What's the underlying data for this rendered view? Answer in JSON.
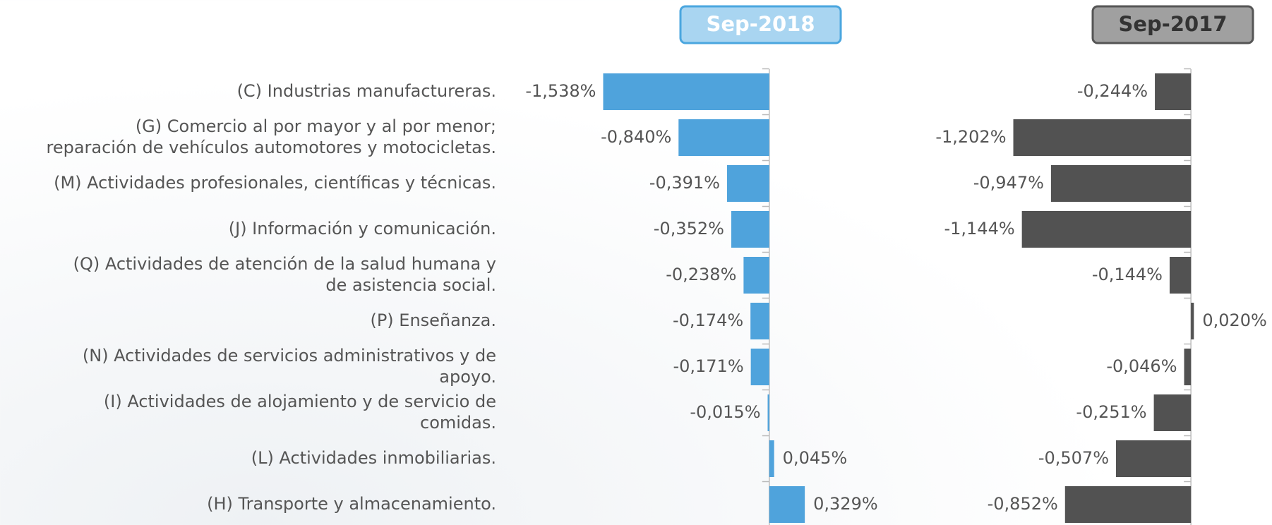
{
  "chart_data": {
    "type": "bar",
    "orientation": "horizontal",
    "categories": [
      [
        "(C) Industrias manufactureras."
      ],
      [
        "(G) Comercio al por mayor y al por menor;",
        "reparación de vehículos automotores y motocicletas."
      ],
      [
        "(M) Actividades profesionales, científicas y técnicas."
      ],
      [
        "(J) Información y comunicación."
      ],
      [
        "(Q) Actividades de atención de la salud humana y",
        "de asistencia social."
      ],
      [
        "(P) Enseñanza."
      ],
      [
        "(N) Actividades de servicios administrativos y de",
        "apoyo."
      ],
      [
        "(I) Actividades de alojamiento y de servicio de",
        "comidas."
      ],
      [
        "(L) Actividades inmobiliarias."
      ],
      [
        "(H) Transporte y almacenamiento."
      ]
    ],
    "series": [
      {
        "name": "Sep-2018",
        "color": "#4fa3dc",
        "values": [
          -1.538,
          -0.84,
          -0.391,
          -0.352,
          -0.238,
          -0.174,
          -0.171,
          -0.015,
          0.045,
          0.329
        ],
        "value_labels": [
          "-1,538%",
          "-0,840%",
          "-0,391%",
          "-0,352%",
          "-0,238%",
          "-0,174%",
          "-0,171%",
          "-0,015%",
          "0,045%",
          "0,329%"
        ],
        "xlim": [
          -1.6,
          0.4
        ]
      },
      {
        "name": "Sep-2017",
        "color": "#525252",
        "values": [
          -0.244,
          -1.202,
          -0.947,
          -1.144,
          -0.144,
          0.02,
          -0.046,
          -0.251,
          -0.507,
          -0.852
        ],
        "value_labels": [
          "-0,244%",
          "-1,202%",
          "-0,947%",
          "-1,144%",
          "-0,144%",
          "0,020%",
          "-0,046%",
          "-0,251%",
          "-0,507%",
          "-0,852%"
        ],
        "xlim": [
          -1.3,
          0.2
        ]
      }
    ]
  }
}
